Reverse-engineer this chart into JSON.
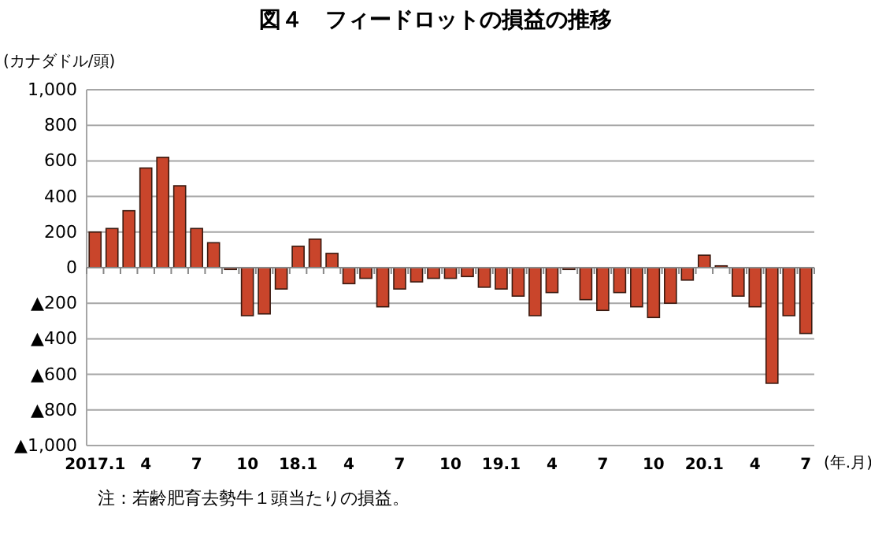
{
  "chart_data": {
    "type": "bar",
    "title": "図４　フィードロットの損益の推移",
    "ylabel": "(カナダドル/頭)",
    "xlabel": "(年.月)",
    "categories": [
      "2017.1",
      null,
      null,
      "4",
      null,
      null,
      "7",
      null,
      null,
      "10",
      null,
      null,
      "18.1",
      null,
      null,
      "4",
      null,
      null,
      "7",
      null,
      null,
      "10",
      null,
      null,
      "19.1",
      null,
      null,
      "4",
      null,
      null,
      "7",
      null,
      null,
      "10",
      null,
      null,
      "20.1",
      null,
      null,
      "4",
      null,
      null,
      "7"
    ],
    "values": [
      200,
      220,
      320,
      560,
      620,
      460,
      220,
      140,
      -10,
      -270,
      -260,
      -120,
      120,
      160,
      80,
      -90,
      -60,
      -220,
      -120,
      -80,
      -60,
      -60,
      -50,
      -110,
      -120,
      -160,
      -270,
      -140,
      -10,
      -180,
      -240,
      -140,
      -220,
      -280,
      -200,
      -70,
      70,
      10,
      -160,
      -220,
      -650,
      -270,
      -370
    ],
    "color": "#c9452b",
    "ylim": [
      -1000,
      1000
    ],
    "yticks": [
      {
        "value": -1000,
        "label": "▲1,000"
      },
      {
        "value": -800,
        "label": "▲800"
      },
      {
        "value": -600,
        "label": "▲600"
      },
      {
        "value": -400,
        "label": "▲400"
      },
      {
        "value": -200,
        "label": "▲200"
      },
      0,
      200,
      400,
      600,
      800,
      {
        "value": 1000,
        "label": "1,000"
      }
    ],
    "grid": "y",
    "annotations": [
      "注：若齢肥育去勢牛１頭当たりの損益。"
    ]
  }
}
